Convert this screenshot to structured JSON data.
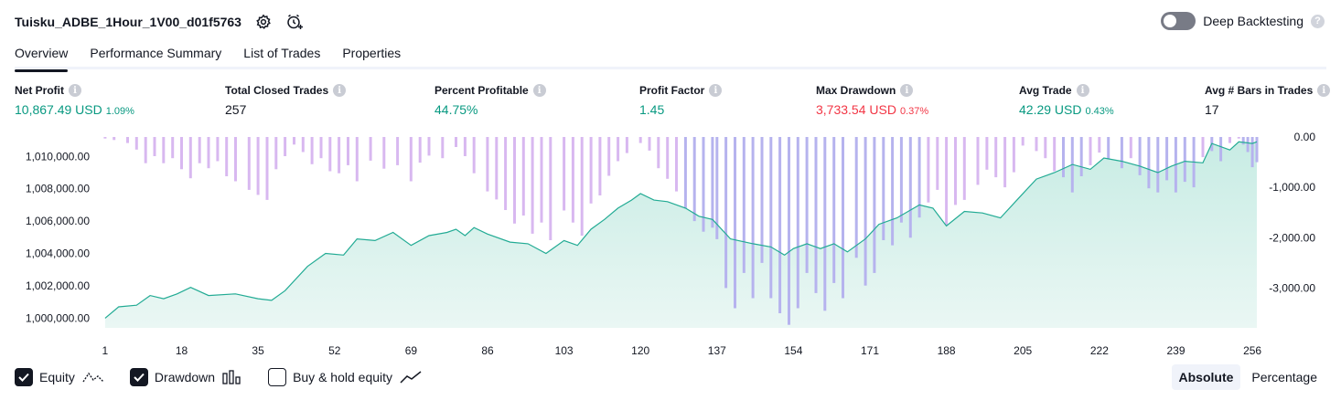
{
  "header": {
    "strategy_title": "Tuisku_ADBE_1Hour_1V00_d01f5763",
    "deep_backtesting_label": "Deep Backtesting",
    "deep_backtesting_enabled": false,
    "help_glyph": "?"
  },
  "tabs": [
    {
      "label": "Overview",
      "active": true
    },
    {
      "label": "Performance Summary",
      "active": false
    },
    {
      "label": "List of Trades",
      "active": false
    },
    {
      "label": "Properties",
      "active": false
    }
  ],
  "metrics": {
    "net_profit": {
      "label": "Net Profit",
      "value": "10,867.49 USD",
      "pct": "1.09%"
    },
    "total_closed_trades": {
      "label": "Total Closed Trades",
      "value": "257"
    },
    "percent_profitable": {
      "label": "Percent Profitable",
      "value": "44.75%"
    },
    "profit_factor": {
      "label": "Profit Factor",
      "value": "1.45"
    },
    "max_drawdown": {
      "label": "Max Drawdown",
      "value": "3,733.54 USD",
      "pct": "0.37%"
    },
    "avg_trade": {
      "label": "Avg Trade",
      "value": "42.29 USD",
      "pct": "0.43%"
    },
    "avg_bars": {
      "label": "Avg # Bars in Trades",
      "value": "17"
    },
    "info_glyph": "i"
  },
  "colors": {
    "equity_line": "#22ab94",
    "equity_fill_top": "#c8ece4",
    "equity_fill_bottom": "#eaf7f4",
    "drawdown_bar": "#d8b8f0",
    "drawdown_bar_overlap": "#b6b3ee",
    "positive": "#089981",
    "negative": "#f23645"
  },
  "chart_data": {
    "type": "line",
    "left_axis": {
      "tick_labels": [
        "1,010,000.00",
        "1,008,000.00",
        "1,006,000.00",
        "1,004,000.00",
        "1,002,000.00",
        "1,000,000.00"
      ],
      "ticks": [
        1010000,
        1008000,
        1006000,
        1004000,
        1002000,
        1000000
      ],
      "range": [
        999400,
        1011200
      ]
    },
    "right_axis": {
      "tick_labels": [
        "0.00",
        "-1,000.00",
        "-2,000.00",
        "-3,000.00"
      ],
      "ticks": [
        0,
        -1000,
        -2000,
        -3000
      ],
      "range": [
        -3790,
        0
      ]
    },
    "x_axis": {
      "tick_labels": [
        "1",
        "18",
        "35",
        "52",
        "69",
        "86",
        "103",
        "120",
        "137",
        "154",
        "171",
        "188",
        "205",
        "222",
        "239",
        "256"
      ],
      "ticks": [
        1,
        18,
        35,
        52,
        69,
        86,
        103,
        120,
        137,
        154,
        171,
        188,
        205,
        222,
        239,
        256
      ],
      "range": [
        0,
        257
      ]
    },
    "series": [
      {
        "name": "Equity",
        "type": "area",
        "points": [
          [
            1,
            1000000
          ],
          [
            4,
            1000700
          ],
          [
            8,
            1000800
          ],
          [
            11,
            1001400
          ],
          [
            14,
            1001200
          ],
          [
            17,
            1001500
          ],
          [
            20,
            1001900
          ],
          [
            24,
            1001400
          ],
          [
            30,
            1001500
          ],
          [
            35,
            1001200
          ],
          [
            38,
            1001100
          ],
          [
            41,
            1001700
          ],
          [
            46,
            1003200
          ],
          [
            50,
            1004000
          ],
          [
            54,
            1003900
          ],
          [
            57,
            1004900
          ],
          [
            61,
            1004800
          ],
          [
            65,
            1005300
          ],
          [
            69,
            1004500
          ],
          [
            73,
            1005100
          ],
          [
            77,
            1005300
          ],
          [
            79,
            1005500
          ],
          [
            81,
            1005100
          ],
          [
            83,
            1005600
          ],
          [
            86,
            1005200
          ],
          [
            91,
            1004700
          ],
          [
            95,
            1004600
          ],
          [
            99,
            1004000
          ],
          [
            103,
            1004800
          ],
          [
            106,
            1004500
          ],
          [
            109,
            1005500
          ],
          [
            112,
            1006100
          ],
          [
            115,
            1006800
          ],
          [
            118,
            1007300
          ],
          [
            120,
            1007700
          ],
          [
            123,
            1007300
          ],
          [
            126,
            1007200
          ],
          [
            130,
            1006800
          ],
          [
            133,
            1006300
          ],
          [
            136,
            1006100
          ],
          [
            140,
            1004900
          ],
          [
            145,
            1004600
          ],
          [
            149,
            1004400
          ],
          [
            152,
            1003900
          ],
          [
            154,
            1004300
          ],
          [
            157,
            1004600
          ],
          [
            160,
            1004300
          ],
          [
            163,
            1004600
          ],
          [
            166,
            1004100
          ],
          [
            170,
            1004900
          ],
          [
            173,
            1005800
          ],
          [
            177,
            1006200
          ],
          [
            182,
            1007000
          ],
          [
            185,
            1006800
          ],
          [
            188,
            1005700
          ],
          [
            192,
            1006600
          ],
          [
            196,
            1006500
          ],
          [
            200,
            1006200
          ],
          [
            204,
            1007400
          ],
          [
            208,
            1008600
          ],
          [
            212,
            1009000
          ],
          [
            216,
            1009500
          ],
          [
            220,
            1009200
          ],
          [
            223,
            1009900
          ],
          [
            227,
            1009700
          ],
          [
            231,
            1009400
          ],
          [
            235,
            1009000
          ],
          [
            238,
            1009400
          ],
          [
            241,
            1009700
          ],
          [
            245,
            1009600
          ],
          [
            247,
            1010800
          ],
          [
            251,
            1010400
          ],
          [
            253,
            1010900
          ],
          [
            256,
            1010800
          ],
          [
            257,
            1010900
          ]
        ]
      },
      {
        "name": "Drawdown",
        "type": "bar",
        "points": [
          [
            1,
            -30
          ],
          [
            3,
            -60
          ],
          [
            6,
            -120
          ],
          [
            8,
            -250
          ],
          [
            10,
            -520
          ],
          [
            12,
            -380
          ],
          [
            14,
            -520
          ],
          [
            16,
            -420
          ],
          [
            18,
            -640
          ],
          [
            20,
            -820
          ],
          [
            22,
            -520
          ],
          [
            24,
            -620
          ],
          [
            26,
            -480
          ],
          [
            28,
            -780
          ],
          [
            30,
            -880
          ],
          [
            33,
            -1050
          ],
          [
            35,
            -1150
          ],
          [
            37,
            -1250
          ],
          [
            39,
            -640
          ],
          [
            41,
            -380
          ],
          [
            43,
            -150
          ],
          [
            45,
            -300
          ],
          [
            47,
            -540
          ],
          [
            49,
            -420
          ],
          [
            51,
            -680
          ],
          [
            53,
            -720
          ],
          [
            55,
            -560
          ],
          [
            57,
            -880
          ],
          [
            60,
            -470
          ],
          [
            63,
            -630
          ],
          [
            66,
            -560
          ],
          [
            69,
            -880
          ],
          [
            71,
            -510
          ],
          [
            73,
            -370
          ],
          [
            76,
            -420
          ],
          [
            79,
            -200
          ],
          [
            81,
            -380
          ],
          [
            83,
            -720
          ],
          [
            86,
            -1080
          ],
          [
            88,
            -1240
          ],
          [
            90,
            -1450
          ],
          [
            92,
            -1720
          ],
          [
            94,
            -1560
          ],
          [
            96,
            -1920
          ],
          [
            98,
            -1700
          ],
          [
            100,
            -2050
          ],
          [
            103,
            -1460
          ],
          [
            105,
            -1700
          ],
          [
            107,
            -1960
          ],
          [
            109,
            -1320
          ],
          [
            111,
            -1160
          ],
          [
            113,
            -770
          ],
          [
            115,
            -480
          ],
          [
            117,
            -320
          ],
          [
            120,
            -120
          ],
          [
            122,
            -270
          ],
          [
            124,
            -620
          ],
          [
            126,
            -830
          ],
          [
            128,
            -1080
          ],
          [
            130,
            -1420
          ],
          [
            132,
            -1670
          ],
          [
            134,
            -1880
          ],
          [
            136,
            -1800
          ],
          [
            137,
            -2030
          ],
          [
            139,
            -3000
          ],
          [
            141,
            -3400
          ],
          [
            143,
            -2700
          ],
          [
            145,
            -3200
          ],
          [
            147,
            -2500
          ],
          [
            149,
            -3200
          ],
          [
            151,
            -3500
          ],
          [
            153,
            -3730
          ],
          [
            155,
            -3400
          ],
          [
            157,
            -2700
          ],
          [
            159,
            -3100
          ],
          [
            161,
            -3450
          ],
          [
            163,
            -2900
          ],
          [
            165,
            -3200
          ],
          [
            168,
            -2400
          ],
          [
            170,
            -2950
          ],
          [
            172,
            -2700
          ],
          [
            174,
            -2050
          ],
          [
            176,
            -2150
          ],
          [
            178,
            -1700
          ],
          [
            180,
            -2000
          ],
          [
            182,
            -1600
          ],
          [
            184,
            -1300
          ],
          [
            186,
            -1050
          ],
          [
            188,
            -1750
          ],
          [
            190,
            -1350
          ],
          [
            192,
            -1250
          ],
          [
            195,
            -950
          ],
          [
            197,
            -650
          ],
          [
            199,
            -800
          ],
          [
            201,
            -1000
          ],
          [
            203,
            -700
          ],
          [
            205,
            -170
          ],
          [
            208,
            -280
          ],
          [
            210,
            -420
          ],
          [
            212,
            -680
          ],
          [
            214,
            -800
          ],
          [
            216,
            -1100
          ],
          [
            218,
            -780
          ],
          [
            220,
            -560
          ],
          [
            222,
            -310
          ],
          [
            224,
            -440
          ],
          [
            227,
            -620
          ],
          [
            229,
            -420
          ],
          [
            231,
            -760
          ],
          [
            233,
            -1020
          ],
          [
            235,
            -1100
          ],
          [
            237,
            -860
          ],
          [
            239,
            -1100
          ],
          [
            241,
            -890
          ],
          [
            243,
            -1000
          ],
          [
            245,
            -400
          ],
          [
            247,
            -280
          ],
          [
            249,
            -480
          ],
          [
            251,
            -120
          ],
          [
            253,
            -30
          ],
          [
            254,
            -150
          ],
          [
            255,
            -300
          ],
          [
            256,
            -600
          ],
          [
            257,
            -500
          ]
        ]
      }
    ],
    "legend": [
      {
        "label": "Equity",
        "checked": true,
        "icon": "equity-line-icon"
      },
      {
        "label": "Drawdown",
        "checked": true,
        "icon": "drawdown-bars-icon"
      },
      {
        "label": "Buy & hold equity",
        "checked": false,
        "icon": "buy-hold-line-icon"
      }
    ],
    "grid": false
  },
  "view_mode": {
    "options": [
      "Absolute",
      "Percentage"
    ],
    "selected": "Absolute"
  }
}
